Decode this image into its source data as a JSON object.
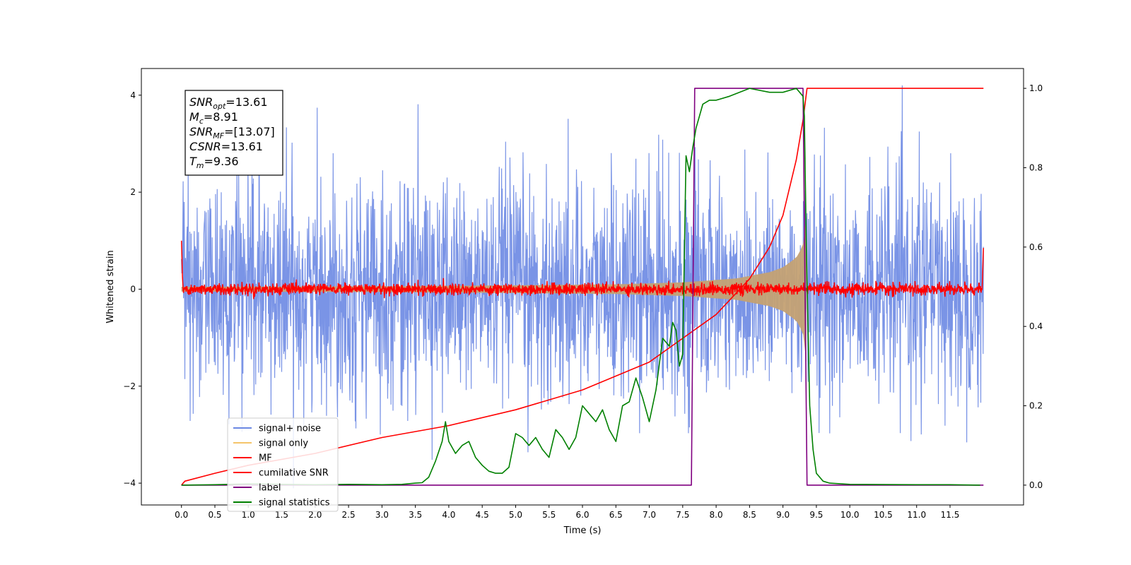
{
  "chart_data": {
    "type": "line",
    "xlabel": "Time (s)",
    "ylabel": "Whitened strain",
    "xlim": [
      -0.6,
      12.6
    ],
    "ylim": [
      -4.45,
      4.55
    ],
    "y2lim": [
      -0.05,
      1.05
    ],
    "xticks": [
      0.0,
      0.5,
      1.0,
      1.5,
      2.0,
      2.5,
      3.0,
      3.5,
      4.0,
      4.5,
      5.0,
      5.5,
      6.0,
      6.5,
      7.0,
      7.5,
      8.0,
      8.5,
      9.0,
      9.5,
      10.0,
      10.5,
      11.0,
      11.5
    ],
    "xtick_labels": [
      "0.0",
      "0.5",
      "1.0",
      "1.5",
      "2.0",
      "2.5",
      "3.0",
      "3.5",
      "4.0",
      "4.5",
      "5.0",
      "5.5",
      "6.0",
      "6.5",
      "7.0",
      "7.5",
      "8.0",
      "8.5",
      "9.0",
      "9.5",
      "10.0",
      "10.5",
      "11.0",
      "11.5"
    ],
    "yticks": [
      -4,
      -2,
      0,
      2,
      4
    ],
    "ytick_labels": [
      "−4",
      "−2",
      "0",
      "2",
      "4"
    ],
    "y2ticks": [
      0.0,
      0.2,
      0.4,
      0.6,
      0.8,
      1.0
    ],
    "y2tick_labels": [
      "0.0",
      "0.2",
      "0.4",
      "0.6",
      "0.8",
      "1.0"
    ],
    "grid": false,
    "legend_position": "bottom-left",
    "annotation": {
      "lines": [
        {
          "base": "SNR",
          "sub": "opt",
          "value": "=13.61"
        },
        {
          "base": "M",
          "sub": "c",
          "value": "=8.91"
        },
        {
          "base": "SNR",
          "sub": "MF",
          "value": "=[13.07]"
        },
        {
          "base": "CSNR",
          "sub": "",
          "value": "=13.61"
        },
        {
          "base": "T",
          "sub": "m",
          "value": "=9.36"
        }
      ]
    },
    "series": [
      {
        "name": "signal+ noise",
        "color": "#6b88e3",
        "axis": "left",
        "x_range": [
          0.0,
          12.0
        ],
        "typical_amplitude": 1.6,
        "max_abs": 4.2
      },
      {
        "name": "signal only",
        "color": "#f5c46a",
        "axis": "left",
        "envelope": {
          "t": [
            0.0,
            3.0,
            5.0,
            6.5,
            7.5,
            8.3,
            8.8,
            9.0,
            9.2,
            9.3,
            9.35
          ],
          "amplitude": [
            0.05,
            0.06,
            0.08,
            0.1,
            0.14,
            0.22,
            0.35,
            0.45,
            0.65,
            0.9,
            1.5
          ]
        }
      },
      {
        "name": "MF",
        "color": "#ff0000",
        "axis": "left",
        "x_range": [
          0.0,
          12.0
        ],
        "typical_amplitude": 0.1,
        "endpoints": [
          1.0,
          0.85
        ]
      },
      {
        "name": "cumilative SNR",
        "color": "#ff0000",
        "axis": "right",
        "x": [
          0.0,
          0.05,
          0.5,
          1.0,
          2.0,
          3.0,
          4.0,
          5.0,
          6.0,
          7.0,
          7.5,
          8.0,
          8.5,
          8.8,
          9.0,
          9.2,
          9.3,
          9.36,
          12.0
        ],
        "y": [
          0.0,
          0.01,
          0.03,
          0.05,
          0.08,
          0.12,
          0.15,
          0.19,
          0.24,
          0.31,
          0.37,
          0.43,
          0.52,
          0.6,
          0.68,
          0.82,
          0.92,
          1.0,
          1.0
        ]
      },
      {
        "name": "label",
        "color": "#800080",
        "axis": "right",
        "x": [
          0.0,
          7.63,
          7.68,
          9.3,
          9.36,
          12.0
        ],
        "y": [
          0.0,
          0.0,
          1.0,
          1.0,
          0.0,
          0.0
        ]
      },
      {
        "name": "signal statistics",
        "color": "#008000",
        "axis": "right",
        "x": [
          0.0,
          0.5,
          1.0,
          1.5,
          2.0,
          2.5,
          3.0,
          3.3,
          3.5,
          3.6,
          3.7,
          3.8,
          3.9,
          3.95,
          4.0,
          4.1,
          4.2,
          4.3,
          4.4,
          4.5,
          4.6,
          4.7,
          4.8,
          4.9,
          5.0,
          5.1,
          5.2,
          5.3,
          5.4,
          5.5,
          5.6,
          5.7,
          5.8,
          5.9,
          6.0,
          6.1,
          6.2,
          6.3,
          6.4,
          6.5,
          6.6,
          6.7,
          6.8,
          6.9,
          7.0,
          7.1,
          7.2,
          7.3,
          7.35,
          7.4,
          7.45,
          7.5,
          7.55,
          7.6,
          7.65,
          7.7,
          7.75,
          7.8,
          7.9,
          8.0,
          8.2,
          8.5,
          8.8,
          9.0,
          9.2,
          9.3,
          9.32,
          9.35,
          9.4,
          9.45,
          9.5,
          9.6,
          9.7,
          10.0,
          11.0,
          11.5,
          11.95
        ],
        "y": [
          0.0,
          0.001,
          0.003,
          0.002,
          0.001,
          0.002,
          0.001,
          0.002,
          0.005,
          0.006,
          0.02,
          0.06,
          0.11,
          0.16,
          0.11,
          0.08,
          0.1,
          0.11,
          0.07,
          0.05,
          0.035,
          0.03,
          0.03,
          0.045,
          0.13,
          0.12,
          0.1,
          0.12,
          0.09,
          0.07,
          0.14,
          0.12,
          0.09,
          0.12,
          0.2,
          0.18,
          0.16,
          0.19,
          0.14,
          0.11,
          0.2,
          0.21,
          0.27,
          0.22,
          0.16,
          0.24,
          0.37,
          0.35,
          0.41,
          0.39,
          0.3,
          0.33,
          0.83,
          0.79,
          0.85,
          0.9,
          0.93,
          0.96,
          0.97,
          0.97,
          0.98,
          1.0,
          0.99,
          0.99,
          1.0,
          0.98,
          0.93,
          0.6,
          0.2,
          0.09,
          0.03,
          0.01,
          0.005,
          0.002,
          0.001,
          0.001,
          0.0
        ]
      }
    ]
  }
}
